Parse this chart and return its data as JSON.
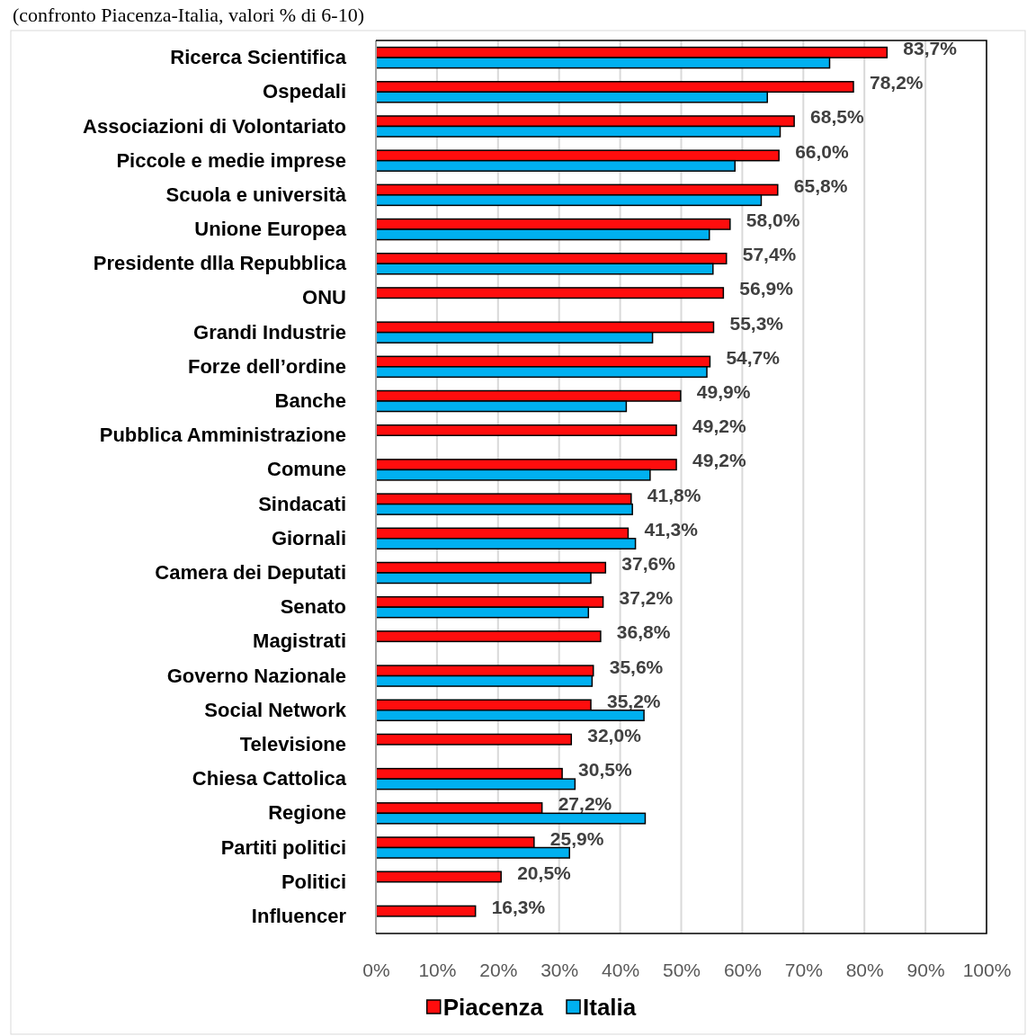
{
  "chart_data": {
    "type": "bar",
    "orientation": "horizontal",
    "subtitle": "(confronto Piacenza-Italia, valori % di 6-10)",
    "categories": [
      "Ricerca Scientifica",
      "Ospedali",
      "Associazioni di Volontariato",
      "Piccole e medie imprese",
      "Scuola e università",
      "Unione Europea",
      "Presidente dlla Repubblica",
      "ONU",
      "Grandi Industrie",
      "Forze dell’ordine",
      "Banche",
      "Pubblica Amministrazione",
      "Comune",
      "Sindacati",
      "Giornali",
      "Camera dei Deputati",
      "Senato",
      "Magistrati",
      "Governo Nazionale",
      "Social Network",
      "Televisione",
      "Chiesa Cattolica",
      "Regione",
      "Partiti politici",
      "Politici",
      "Influencer"
    ],
    "series": [
      {
        "name": "Piacenza",
        "color": "#ff0d0d",
        "values": [
          83.7,
          78.2,
          68.5,
          66.0,
          65.8,
          58.0,
          57.4,
          56.9,
          55.3,
          54.7,
          49.9,
          49.2,
          49.2,
          41.8,
          41.3,
          37.6,
          37.2,
          36.8,
          35.6,
          35.2,
          32.0,
          30.5,
          27.2,
          25.9,
          20.5,
          16.3
        ],
        "value_labels": [
          "83,7%",
          "78,2%",
          "68,5%",
          "66,0%",
          "65,8%",
          "58,0%",
          "57,4%",
          "56,9%",
          "55,3%",
          "54,7%",
          "49,9%",
          "49,2%",
          "49,2%",
          "41,8%",
          "41,3%",
          "37,6%",
          "37,2%",
          "36,8%",
          "35,6%",
          "35,2%",
          "32,0%",
          "30,5%",
          "27,2%",
          "25,9%",
          "20,5%",
          "16,3%"
        ]
      },
      {
        "name": "Italia",
        "color": "#00b0f0",
        "values": [
          74.3,
          64.1,
          66.2,
          58.8,
          63.1,
          54.6,
          55.2,
          null,
          45.3,
          54.2,
          41.0,
          null,
          44.9,
          42.0,
          42.5,
          35.2,
          34.8,
          null,
          35.4,
          43.9,
          null,
          32.6,
          44.1,
          31.7,
          null,
          null
        ]
      }
    ],
    "xlim": [
      0,
      100
    ],
    "xticks": [
      {
        "value": 0,
        "label": "0%"
      },
      {
        "value": 10,
        "label": "10%"
      },
      {
        "value": 20,
        "label": "20%"
      },
      {
        "value": 30,
        "label": "30%"
      },
      {
        "value": 40,
        "label": "40%"
      },
      {
        "value": 50,
        "label": "50%"
      },
      {
        "value": 60,
        "label": "60%"
      },
      {
        "value": 70,
        "label": "70%"
      },
      {
        "value": 80,
        "label": "80%"
      },
      {
        "value": 90,
        "label": "90%"
      },
      {
        "value": 100,
        "label": "100%"
      }
    ],
    "grid": "x",
    "legend": "bottom"
  }
}
